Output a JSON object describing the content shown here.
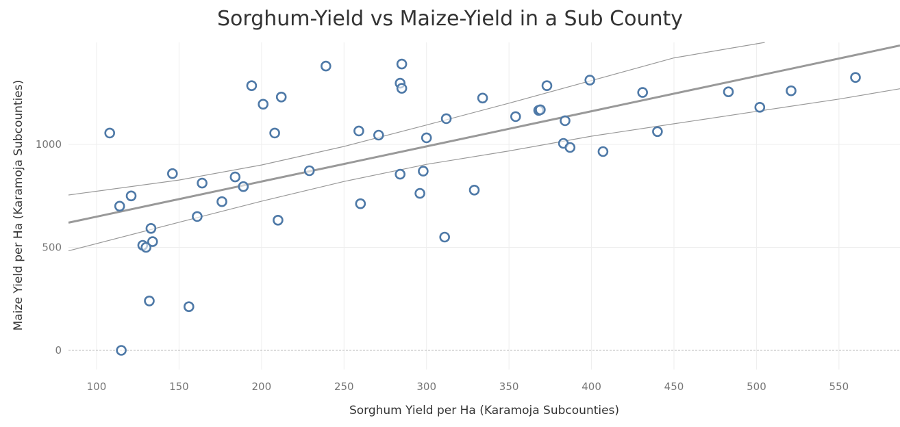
{
  "chart_data": {
    "type": "scatter",
    "title": "Sorghum-Yield vs Maize-Yield in a Sub County",
    "xlabel": "Sorghum Yield per Ha (Karamoja Subcounties)",
    "ylabel": "Maize Yield per Ha (Karamoja Subcounties)",
    "xlim": [
      83,
      587
    ],
    "ylim": [
      -93,
      1495
    ],
    "x_ticks": [
      100,
      150,
      200,
      250,
      300,
      350,
      400,
      450,
      500,
      550
    ],
    "y_ticks": [
      0,
      500,
      1000
    ],
    "grid": true,
    "legend": "none",
    "marker": "open-circle",
    "colors": {
      "points": "#4e79a7",
      "trend": "#999999",
      "confidence": "#999999",
      "grid": "#eeeeee",
      "zero_line": "#bbbbbb"
    },
    "points": [
      {
        "x": 108,
        "y": 1055
      },
      {
        "x": 114,
        "y": 700
      },
      {
        "x": 115,
        "y": 0
      },
      {
        "x": 121,
        "y": 750
      },
      {
        "x": 128,
        "y": 510
      },
      {
        "x": 130,
        "y": 500
      },
      {
        "x": 132,
        "y": 240
      },
      {
        "x": 133,
        "y": 592
      },
      {
        "x": 134,
        "y": 528
      },
      {
        "x": 146,
        "y": 858
      },
      {
        "x": 156,
        "y": 212
      },
      {
        "x": 161,
        "y": 650
      },
      {
        "x": 164,
        "y": 812
      },
      {
        "x": 176,
        "y": 722
      },
      {
        "x": 184,
        "y": 842
      },
      {
        "x": 189,
        "y": 795
      },
      {
        "x": 194,
        "y": 1285
      },
      {
        "x": 201,
        "y": 1195
      },
      {
        "x": 208,
        "y": 1055
      },
      {
        "x": 210,
        "y": 632
      },
      {
        "x": 212,
        "y": 1230
      },
      {
        "x": 229,
        "y": 872
      },
      {
        "x": 239,
        "y": 1380
      },
      {
        "x": 259,
        "y": 1065
      },
      {
        "x": 260,
        "y": 712
      },
      {
        "x": 271,
        "y": 1045
      },
      {
        "x": 284,
        "y": 855
      },
      {
        "x": 284,
        "y": 1297
      },
      {
        "x": 285,
        "y": 1390
      },
      {
        "x": 285,
        "y": 1272
      },
      {
        "x": 296,
        "y": 762
      },
      {
        "x": 298,
        "y": 870
      },
      {
        "x": 300,
        "y": 1032
      },
      {
        "x": 311,
        "y": 550
      },
      {
        "x": 312,
        "y": 1125
      },
      {
        "x": 329,
        "y": 778
      },
      {
        "x": 334,
        "y": 1225
      },
      {
        "x": 354,
        "y": 1135
      },
      {
        "x": 368,
        "y": 1165
      },
      {
        "x": 369,
        "y": 1168
      },
      {
        "x": 373,
        "y": 1285
      },
      {
        "x": 383,
        "y": 1005
      },
      {
        "x": 384,
        "y": 1115
      },
      {
        "x": 387,
        "y": 985
      },
      {
        "x": 399,
        "y": 1312
      },
      {
        "x": 407,
        "y": 965
      },
      {
        "x": 431,
        "y": 1252
      },
      {
        "x": 440,
        "y": 1062
      },
      {
        "x": 483,
        "y": 1255
      },
      {
        "x": 502,
        "y": 1180
      },
      {
        "x": 521,
        "y": 1260
      },
      {
        "x": 560,
        "y": 1325
      }
    ],
    "trend_line": {
      "x": [
        83,
        587
      ],
      "y": [
        620,
        1480
      ]
    },
    "confidence_upper": {
      "x": [
        83,
        150,
        200,
        250,
        300,
        350,
        400,
        450,
        505
      ],
      "y": [
        754,
        827,
        900,
        990,
        1094,
        1200,
        1310,
        1420,
        1495
      ]
    },
    "confidence_lower": {
      "x": [
        83,
        150,
        200,
        250,
        300,
        350,
        400,
        450,
        500,
        550,
        587
      ],
      "y": [
        483,
        622,
        724,
        820,
        903,
        968,
        1040,
        1100,
        1160,
        1220,
        1270
      ]
    }
  }
}
